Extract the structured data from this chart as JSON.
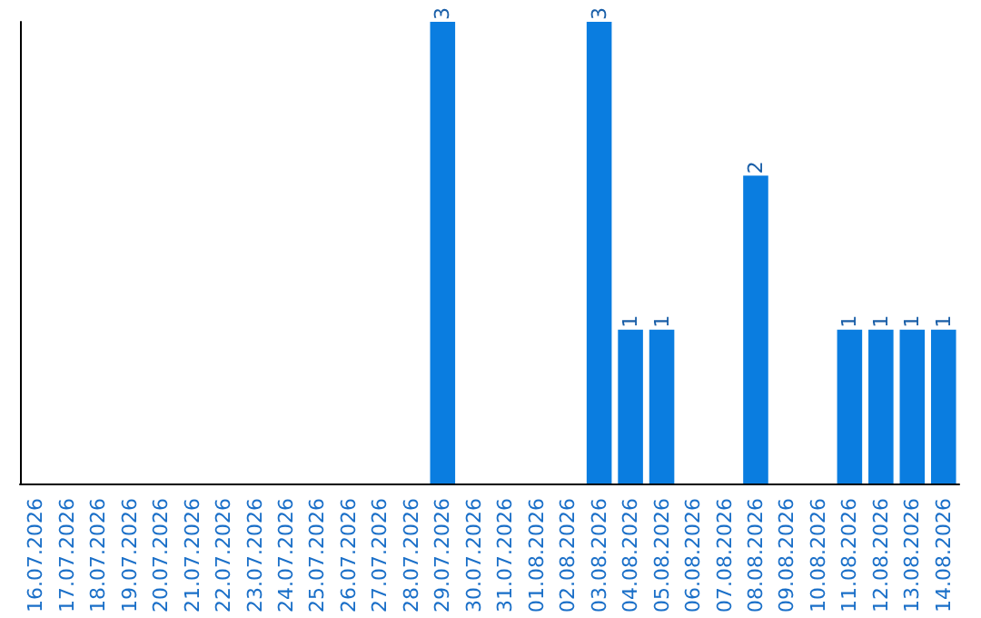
{
  "chart_data": {
    "type": "bar",
    "categories": [
      "16.07.2026",
      "17.07.2026",
      "18.07.2026",
      "19.07.2026",
      "20.07.2026",
      "21.07.2026",
      "22.07.2026",
      "23.07.2026",
      "24.07.2026",
      "25.07.2026",
      "26.07.2026",
      "27.07.2026",
      "28.07.2026",
      "29.07.2026",
      "30.07.2026",
      "31.07.2026",
      "01.08.2026",
      "02.08.2026",
      "03.08.2026",
      "04.08.2026",
      "05.08.2026",
      "06.08.2026",
      "07.08.2026",
      "08.08.2026",
      "09.08.2026",
      "10.08.2026",
      "11.08.2026",
      "12.08.2026",
      "13.08.2026",
      "14.08.2026"
    ],
    "values": [
      null,
      null,
      null,
      null,
      null,
      null,
      null,
      null,
      null,
      null,
      null,
      null,
      null,
      3,
      null,
      null,
      null,
      null,
      3,
      1,
      1,
      null,
      null,
      2,
      null,
      null,
      1,
      1,
      1,
      1
    ],
    "data_labels": true,
    "color": "#0a7de0",
    "grid": false,
    "tick_labels": "x"
  }
}
